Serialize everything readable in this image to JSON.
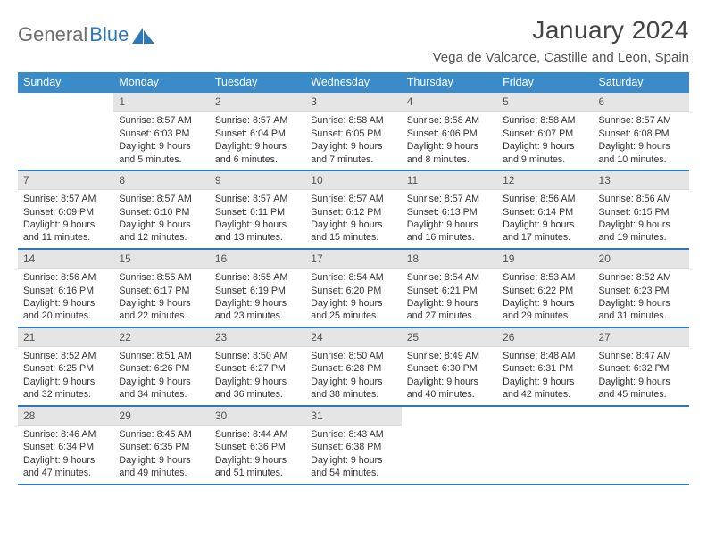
{
  "branding": {
    "word1": "General",
    "word2": "Blue",
    "logo_color": "#2f78b7",
    "text_gray": "#6e6e6e"
  },
  "header": {
    "title": "January 2024",
    "location": "Vega de Valcarce, Castille and Leon, Spain"
  },
  "colors": {
    "header_row_bg": "#3b8bc8",
    "header_row_fg": "#ffffff",
    "daynum_bg": "#e5e5e5",
    "week_divider": "#2f78b7",
    "body_bg": "#ffffff"
  },
  "weekdays": [
    "Sunday",
    "Monday",
    "Tuesday",
    "Wednesday",
    "Thursday",
    "Friday",
    "Saturday"
  ],
  "weeks": [
    [
      null,
      {
        "n": "1",
        "sr": "8:57 AM",
        "ss": "6:03 PM",
        "dl": "9 hours and 5 minutes."
      },
      {
        "n": "2",
        "sr": "8:57 AM",
        "ss": "6:04 PM",
        "dl": "9 hours and 6 minutes."
      },
      {
        "n": "3",
        "sr": "8:58 AM",
        "ss": "6:05 PM",
        "dl": "9 hours and 7 minutes."
      },
      {
        "n": "4",
        "sr": "8:58 AM",
        "ss": "6:06 PM",
        "dl": "9 hours and 8 minutes."
      },
      {
        "n": "5",
        "sr": "8:58 AM",
        "ss": "6:07 PM",
        "dl": "9 hours and 9 minutes."
      },
      {
        "n": "6",
        "sr": "8:57 AM",
        "ss": "6:08 PM",
        "dl": "9 hours and 10 minutes."
      }
    ],
    [
      {
        "n": "7",
        "sr": "8:57 AM",
        "ss": "6:09 PM",
        "dl": "9 hours and 11 minutes."
      },
      {
        "n": "8",
        "sr": "8:57 AM",
        "ss": "6:10 PM",
        "dl": "9 hours and 12 minutes."
      },
      {
        "n": "9",
        "sr": "8:57 AM",
        "ss": "6:11 PM",
        "dl": "9 hours and 13 minutes."
      },
      {
        "n": "10",
        "sr": "8:57 AM",
        "ss": "6:12 PM",
        "dl": "9 hours and 15 minutes."
      },
      {
        "n": "11",
        "sr": "8:57 AM",
        "ss": "6:13 PM",
        "dl": "9 hours and 16 minutes."
      },
      {
        "n": "12",
        "sr": "8:56 AM",
        "ss": "6:14 PM",
        "dl": "9 hours and 17 minutes."
      },
      {
        "n": "13",
        "sr": "8:56 AM",
        "ss": "6:15 PM",
        "dl": "9 hours and 19 minutes."
      }
    ],
    [
      {
        "n": "14",
        "sr": "8:56 AM",
        "ss": "6:16 PM",
        "dl": "9 hours and 20 minutes."
      },
      {
        "n": "15",
        "sr": "8:55 AM",
        "ss": "6:17 PM",
        "dl": "9 hours and 22 minutes."
      },
      {
        "n": "16",
        "sr": "8:55 AM",
        "ss": "6:19 PM",
        "dl": "9 hours and 23 minutes."
      },
      {
        "n": "17",
        "sr": "8:54 AM",
        "ss": "6:20 PM",
        "dl": "9 hours and 25 minutes."
      },
      {
        "n": "18",
        "sr": "8:54 AM",
        "ss": "6:21 PM",
        "dl": "9 hours and 27 minutes."
      },
      {
        "n": "19",
        "sr": "8:53 AM",
        "ss": "6:22 PM",
        "dl": "9 hours and 29 minutes."
      },
      {
        "n": "20",
        "sr": "8:52 AM",
        "ss": "6:23 PM",
        "dl": "9 hours and 31 minutes."
      }
    ],
    [
      {
        "n": "21",
        "sr": "8:52 AM",
        "ss": "6:25 PM",
        "dl": "9 hours and 32 minutes."
      },
      {
        "n": "22",
        "sr": "8:51 AM",
        "ss": "6:26 PM",
        "dl": "9 hours and 34 minutes."
      },
      {
        "n": "23",
        "sr": "8:50 AM",
        "ss": "6:27 PM",
        "dl": "9 hours and 36 minutes."
      },
      {
        "n": "24",
        "sr": "8:50 AM",
        "ss": "6:28 PM",
        "dl": "9 hours and 38 minutes."
      },
      {
        "n": "25",
        "sr": "8:49 AM",
        "ss": "6:30 PM",
        "dl": "9 hours and 40 minutes."
      },
      {
        "n": "26",
        "sr": "8:48 AM",
        "ss": "6:31 PM",
        "dl": "9 hours and 42 minutes."
      },
      {
        "n": "27",
        "sr": "8:47 AM",
        "ss": "6:32 PM",
        "dl": "9 hours and 45 minutes."
      }
    ],
    [
      {
        "n": "28",
        "sr": "8:46 AM",
        "ss": "6:34 PM",
        "dl": "9 hours and 47 minutes."
      },
      {
        "n": "29",
        "sr": "8:45 AM",
        "ss": "6:35 PM",
        "dl": "9 hours and 49 minutes."
      },
      {
        "n": "30",
        "sr": "8:44 AM",
        "ss": "6:36 PM",
        "dl": "9 hours and 51 minutes."
      },
      {
        "n": "31",
        "sr": "8:43 AM",
        "ss": "6:38 PM",
        "dl": "9 hours and 54 minutes."
      },
      null,
      null,
      null
    ]
  ],
  "labels": {
    "sunrise": "Sunrise:",
    "sunset": "Sunset:",
    "daylight": "Daylight:"
  }
}
